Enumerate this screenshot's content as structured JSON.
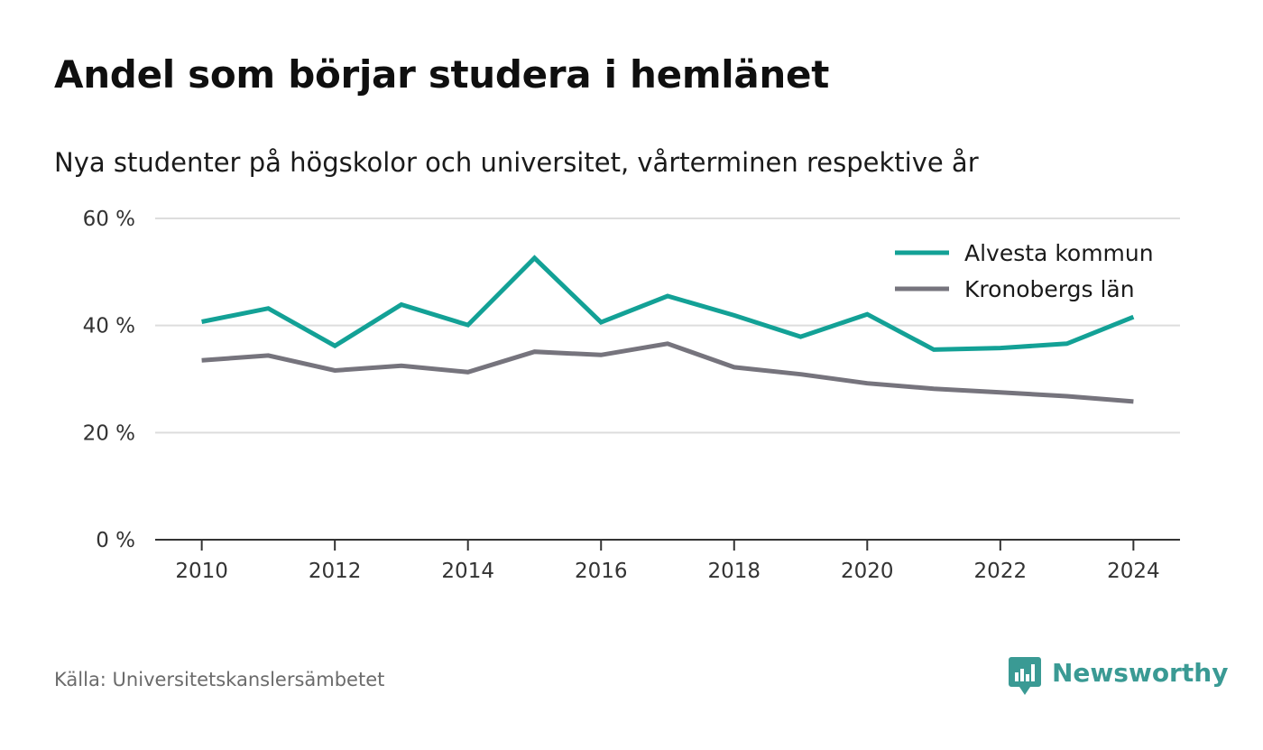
{
  "header": {
    "title": "Andel som börjar studera i hemlänet",
    "subtitle": "Nya studenter på högskolor och universitet, vårterminen respektive år"
  },
  "footer": {
    "source": "Källa: Universitetskanslersämbetet",
    "brand": "Newsworthy"
  },
  "colors": {
    "alvesta": "#13a196",
    "kronoberg": "#76747d",
    "grid": "#dddddd",
    "axis": "#333333",
    "brand": "#3a9a94"
  },
  "icons": {
    "brand": "newsworthy-logo-icon"
  },
  "chart_data": {
    "type": "line",
    "title": "Andel som börjar studera i hemlänet",
    "subtitle": "Nya studenter på högskolor och universitet, vårterminen respektive år",
    "xlabel": "",
    "ylabel": "",
    "x": [
      2010,
      2011,
      2012,
      2013,
      2014,
      2015,
      2016,
      2017,
      2018,
      2019,
      2020,
      2021,
      2022,
      2023,
      2024
    ],
    "xticks": [
      "2010",
      "2012",
      "2014",
      "2016",
      "2018",
      "2020",
      "2022",
      "2024"
    ],
    "xlim": [
      2009.3,
      2024.7
    ],
    "ylim": [
      0,
      60
    ],
    "yticks": [
      0,
      20,
      40,
      60
    ],
    "ytick_labels": [
      "0 %",
      "20 %",
      "40 %",
      "60 %"
    ],
    "grid": true,
    "legend_position": "top-right",
    "series": [
      {
        "name": "Alvesta kommun",
        "values": [
          40.7,
          43.2,
          36.2,
          43.9,
          40.1,
          52.6,
          40.6,
          45.5,
          41.9,
          37.9,
          42.1,
          35.5,
          35.8,
          36.6,
          41.6
        ]
      },
      {
        "name": "Kronobergs län",
        "values": [
          33.5,
          34.4,
          31.6,
          32.5,
          31.3,
          35.1,
          34.5,
          36.6,
          32.2,
          30.9,
          29.2,
          28.2,
          27.5,
          26.8,
          25.8
        ]
      }
    ]
  }
}
